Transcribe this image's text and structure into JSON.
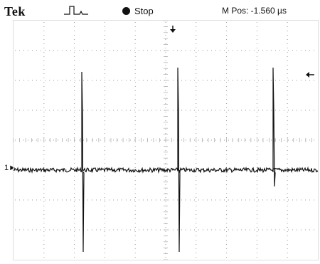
{
  "header": {
    "brand": "Tek",
    "state_label": "Stop",
    "mpos_label": "M Pos: -1.560 µs"
  },
  "icons": {
    "trigger_type": "pulse-trigger-icon",
    "run_state": "filled-circle-icon",
    "trigger_position": "down-arrow-icon",
    "trigger_level": "left-arrow-icon",
    "channel_ground": "channel-1-ground-marker"
  },
  "screen": {
    "channel_label": "1"
  }
}
